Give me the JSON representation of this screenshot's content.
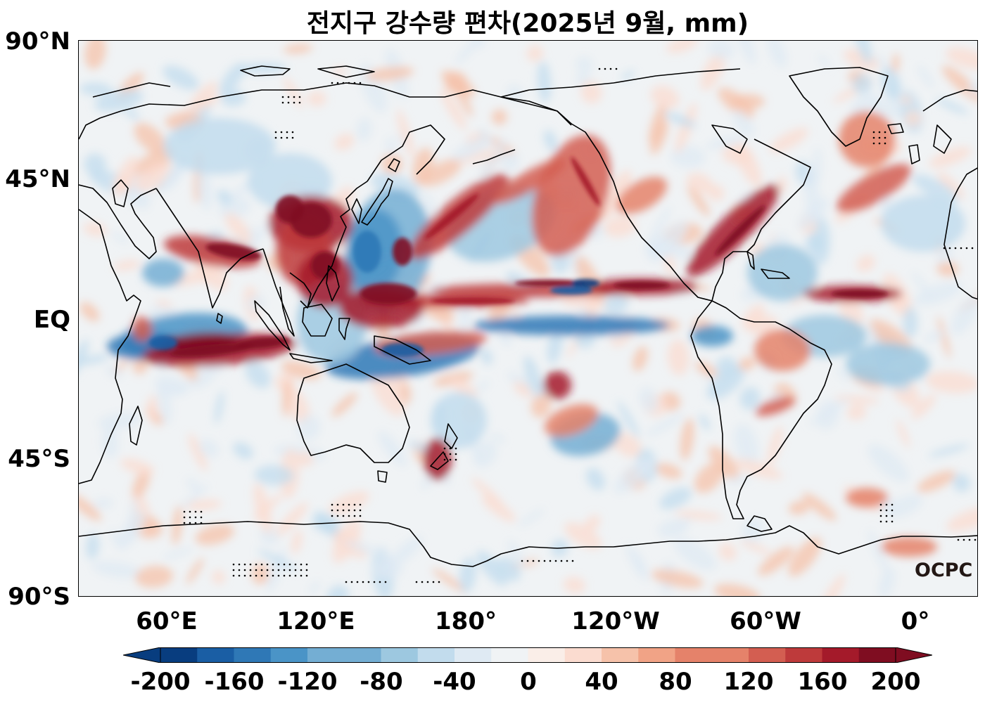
{
  "title": "전지구 강수량 편차(2025년 9월, mm)",
  "lat_labels": [
    "90°N",
    "45°N",
    "EQ",
    "45°S",
    "90°S"
  ],
  "lon_labels": [
    "60°E",
    "120°E",
    "180°",
    "120°W",
    "60°W",
    "0°"
  ],
  "colorbar": {
    "ticks": [
      "-200",
      "-160",
      "-120",
      "-80",
      "-40",
      "0",
      "40",
      "80",
      "120",
      "160",
      "200"
    ],
    "colors": [
      "#083d7f",
      "#1a5ea4",
      "#2f78b6",
      "#4a94c7",
      "#74aed3",
      "#9dc8e0",
      "#c2dced",
      "#dfeaf3",
      "#f0f3f5",
      "#faeee8",
      "#fbdcd0",
      "#f6c2aa",
      "#f1a386",
      "#e5826a",
      "#d35e51",
      "#be3a3b",
      "#a41a2a",
      "#7f0d21"
    ]
  },
  "logo": "OCPC",
  "map_extent": {
    "lon_min": 25,
    "lon_max": 385,
    "lat_min": -90,
    "lat_max": 90,
    "projection": "PlateCarree",
    "central_longitude": 205
  }
}
